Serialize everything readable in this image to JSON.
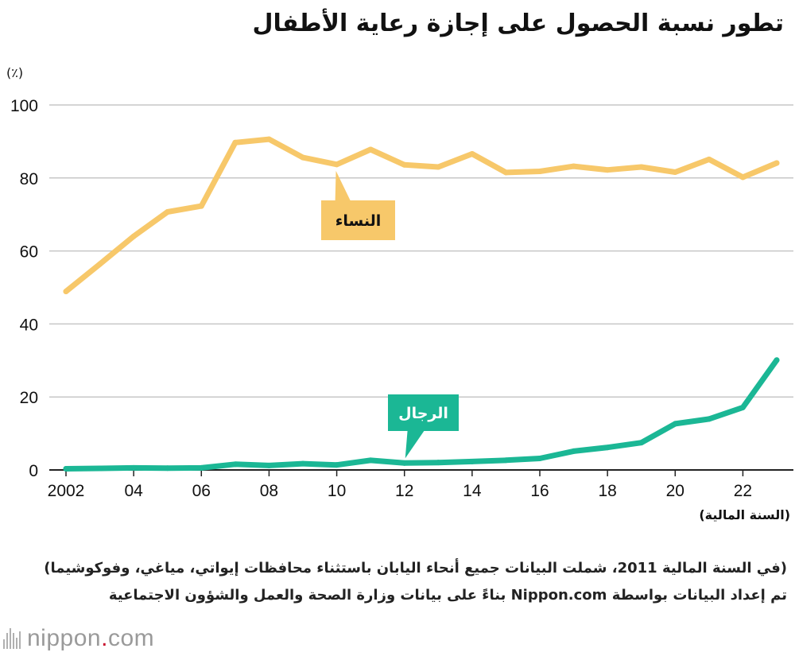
{
  "title": "تطور نسبة الحصول على إجازة رعاية الأطفال",
  "unit": "(٪)",
  "x_axis_unit": "(السنة المالية)",
  "notes": [
    "(في السنة المالية 2011، شملت البيانات جميع أنحاء اليابان باستثناء محافظات إيواتي، مياغي، وفوكوشيما)",
    "تم إعداد البيانات بواسطة Nippon.com بناءً على بيانات وزارة الصحة والعمل والشؤون الاجتماعية"
  ],
  "logo": {
    "name": "nippon",
    "dot": ".",
    "tld": "com"
  },
  "colors": {
    "women": "#f7c86a",
    "men": "#1bb795",
    "grid": "#c7c7c7"
  },
  "chart_data": {
    "type": "line",
    "title": "تطور نسبة الحصول على إجازة رعاية الأطفال",
    "ylabel": "(٪)",
    "xlabel": "(السنة المالية)",
    "ylim": [
      0,
      100
    ],
    "yticks": [
      0,
      20,
      40,
      60,
      80,
      100
    ],
    "xlim": [
      2002,
      2023
    ],
    "xticks": [
      {
        "value": 2002,
        "label": "2002"
      },
      {
        "value": 2004,
        "label": "04"
      },
      {
        "value": 2006,
        "label": "06"
      },
      {
        "value": 2008,
        "label": "08"
      },
      {
        "value": 2010,
        "label": "10"
      },
      {
        "value": 2012,
        "label": "12"
      },
      {
        "value": 2014,
        "label": "14"
      },
      {
        "value": 2016,
        "label": "16"
      },
      {
        "value": 2018,
        "label": "18"
      },
      {
        "value": 2020,
        "label": "20"
      },
      {
        "value": 2022,
        "label": "22"
      }
    ],
    "x": [
      2002,
      2003,
      2004,
      2005,
      2006,
      2007,
      2008,
      2009,
      2010,
      2011,
      2012,
      2013,
      2014,
      2015,
      2016,
      2017,
      2018,
      2019,
      2020,
      2021,
      2022,
      2023
    ],
    "series": [
      {
        "name": "النساء",
        "color": "#f7c86a",
        "values": [
          48.9,
          56.4,
          64.0,
          70.7,
          72.3,
          89.7,
          90.6,
          85.6,
          83.7,
          87.8,
          83.6,
          83.0,
          86.6,
          81.5,
          81.8,
          83.2,
          82.2,
          83.0,
          81.6,
          85.1,
          80.2,
          84.1
        ],
        "callout_year": 2010
      },
      {
        "name": "الرجال",
        "color": "#1bb795",
        "values": [
          0.33,
          0.44,
          0.56,
          0.5,
          0.57,
          1.56,
          1.23,
          1.72,
          1.38,
          2.63,
          1.89,
          2.03,
          2.3,
          2.65,
          3.16,
          5.14,
          6.16,
          7.48,
          12.65,
          13.97,
          17.13,
          30.1
        ],
        "callout_year": 2012
      }
    ]
  }
}
